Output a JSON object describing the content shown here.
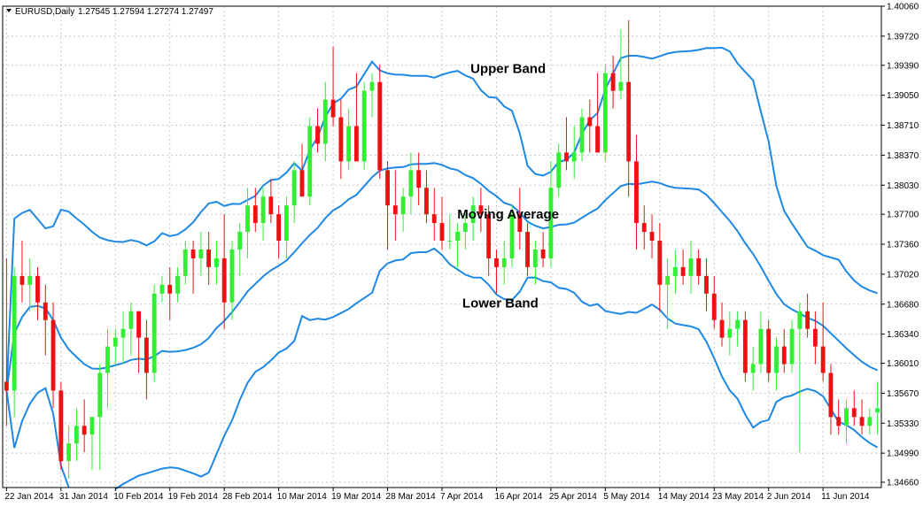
{
  "header": {
    "symbol": "EURUSD,Daily",
    "ohlc": "1.27545 1.27594 1.27274 1.27497"
  },
  "colors": {
    "bull": "#33ee33",
    "bear": "#ee1111",
    "band": "#1e88e5",
    "grid": "#c8c8c8",
    "axis": "#000000"
  },
  "chart_data": {
    "type": "candlestick",
    "grid": true,
    "ylim": [
      1.346,
      1.4006
    ],
    "y_ticks": [
      "1.40060",
      "1.39720",
      "1.39390",
      "1.39050",
      "1.38710",
      "1.38370",
      "1.38030",
      "1.37700",
      "1.37360",
      "1.37020",
      "1.36680",
      "1.36340",
      "1.36010",
      "1.35670",
      "1.35330",
      "1.34990",
      "1.34660"
    ],
    "x_ticks": [
      {
        "label": "22 Jan 2014",
        "index": 0
      },
      {
        "label": "31 Jan 2014",
        "index": 7
      },
      {
        "label": "10 Feb 2014",
        "index": 14
      },
      {
        "label": "19 Feb 2014",
        "index": 21
      },
      {
        "label": "28 Feb 2014",
        "index": 28
      },
      {
        "label": "10 Mar 2014",
        "index": 35
      },
      {
        "label": "19 Mar 2014",
        "index": 42
      },
      {
        "label": "28 Mar 2014",
        "index": 49
      },
      {
        "label": "7 Apr 2014",
        "index": 56
      },
      {
        "label": "16 Apr 2014",
        "index": 63
      },
      {
        "label": "25 Apr 2014",
        "index": 70
      },
      {
        "label": "5 May 2014",
        "index": 77
      },
      {
        "label": "14 May 2014",
        "index": 84
      },
      {
        "label": "23 May 2014",
        "index": 91
      },
      {
        "label": "2 Jun 2014",
        "index": 98
      },
      {
        "label": "11 Jun 2014",
        "index": 105
      }
    ],
    "annotations": [
      {
        "text": "Upper Band",
        "index": 64.5,
        "price": 1.393
      },
      {
        "text": "Moving Average",
        "index": 64.5,
        "price": 1.3765
      },
      {
        "text": "Lower Band",
        "index": 63.5,
        "price": 1.3664
      }
    ],
    "candles": [
      {
        "o": 1.358,
        "h": 1.372,
        "l": 1.353,
        "c": 1.357
      },
      {
        "o": 1.357,
        "h": 1.371,
        "l": 1.354,
        "c": 1.37
      },
      {
        "o": 1.37,
        "h": 1.374,
        "l": 1.367,
        "c": 1.369
      },
      {
        "o": 1.369,
        "h": 1.372,
        "l": 1.366,
        "c": 1.37
      },
      {
        "o": 1.37,
        "h": 1.371,
        "l": 1.365,
        "c": 1.367
      },
      {
        "o": 1.367,
        "h": 1.369,
        "l": 1.361,
        "c": 1.365
      },
      {
        "o": 1.365,
        "h": 1.367,
        "l": 1.355,
        "c": 1.357
      },
      {
        "o": 1.357,
        "h": 1.358,
        "l": 1.348,
        "c": 1.349
      },
      {
        "o": 1.349,
        "h": 1.353,
        "l": 1.347,
        "c": 1.351
      },
      {
        "o": 1.351,
        "h": 1.355,
        "l": 1.349,
        "c": 1.353
      },
      {
        "o": 1.353,
        "h": 1.356,
        "l": 1.35,
        "c": 1.352
      },
      {
        "o": 1.352,
        "h": 1.354,
        "l": 1.348,
        "c": 1.354
      },
      {
        "o": 1.354,
        "h": 1.36,
        "l": 1.348,
        "c": 1.359
      },
      {
        "o": 1.359,
        "h": 1.364,
        "l": 1.355,
        "c": 1.362
      },
      {
        "o": 1.362,
        "h": 1.364,
        "l": 1.36,
        "c": 1.363
      },
      {
        "o": 1.363,
        "h": 1.366,
        "l": 1.36,
        "c": 1.364
      },
      {
        "o": 1.364,
        "h": 1.367,
        "l": 1.361,
        "c": 1.366
      },
      {
        "o": 1.366,
        "h": 1.366,
        "l": 1.359,
        "c": 1.363
      },
      {
        "o": 1.363,
        "h": 1.365,
        "l": 1.356,
        "c": 1.359
      },
      {
        "o": 1.359,
        "h": 1.369,
        "l": 1.358,
        "c": 1.368
      },
      {
        "o": 1.368,
        "h": 1.37,
        "l": 1.367,
        "c": 1.369
      },
      {
        "o": 1.369,
        "h": 1.371,
        "l": 1.365,
        "c": 1.368
      },
      {
        "o": 1.368,
        "h": 1.371,
        "l": 1.367,
        "c": 1.37
      },
      {
        "o": 1.37,
        "h": 1.374,
        "l": 1.369,
        "c": 1.373
      },
      {
        "o": 1.373,
        "h": 1.374,
        "l": 1.368,
        "c": 1.372
      },
      {
        "o": 1.372,
        "h": 1.375,
        "l": 1.37,
        "c": 1.373
      },
      {
        "o": 1.373,
        "h": 1.375,
        "l": 1.369,
        "c": 1.371
      },
      {
        "o": 1.371,
        "h": 1.374,
        "l": 1.369,
        "c": 1.372
      },
      {
        "o": 1.372,
        "h": 1.377,
        "l": 1.364,
        "c": 1.367
      },
      {
        "o": 1.367,
        "h": 1.374,
        "l": 1.365,
        "c": 1.373
      },
      {
        "o": 1.373,
        "h": 1.376,
        "l": 1.37,
        "c": 1.375
      },
      {
        "o": 1.375,
        "h": 1.38,
        "l": 1.372,
        "c": 1.378
      },
      {
        "o": 1.378,
        "h": 1.38,
        "l": 1.375,
        "c": 1.376
      },
      {
        "o": 1.376,
        "h": 1.38,
        "l": 1.374,
        "c": 1.379
      },
      {
        "o": 1.379,
        "h": 1.381,
        "l": 1.376,
        "c": 1.377
      },
      {
        "o": 1.377,
        "h": 1.378,
        "l": 1.372,
        "c": 1.374
      },
      {
        "o": 1.374,
        "h": 1.379,
        "l": 1.372,
        "c": 1.378
      },
      {
        "o": 1.378,
        "h": 1.383,
        "l": 1.376,
        "c": 1.382
      },
      {
        "o": 1.382,
        "h": 1.385,
        "l": 1.379,
        "c": 1.379
      },
      {
        "o": 1.379,
        "h": 1.388,
        "l": 1.378,
        "c": 1.387
      },
      {
        "o": 1.387,
        "h": 1.389,
        "l": 1.384,
        "c": 1.385
      },
      {
        "o": 1.385,
        "h": 1.392,
        "l": 1.383,
        "c": 1.39
      },
      {
        "o": 1.39,
        "h": 1.396,
        "l": 1.387,
        "c": 1.388
      },
      {
        "o": 1.388,
        "h": 1.39,
        "l": 1.381,
        "c": 1.383
      },
      {
        "o": 1.383,
        "h": 1.389,
        "l": 1.382,
        "c": 1.387
      },
      {
        "o": 1.387,
        "h": 1.393,
        "l": 1.383,
        "c": 1.383
      },
      {
        "o": 1.383,
        "h": 1.392,
        "l": 1.382,
        "c": 1.391
      },
      {
        "o": 1.391,
        "h": 1.393,
        "l": 1.388,
        "c": 1.392
      },
      {
        "o": 1.392,
        "h": 1.394,
        "l": 1.381,
        "c": 1.382
      },
      {
        "o": 1.382,
        "h": 1.383,
        "l": 1.373,
        "c": 1.378
      },
      {
        "o": 1.378,
        "h": 1.382,
        "l": 1.374,
        "c": 1.377
      },
      {
        "o": 1.377,
        "h": 1.38,
        "l": 1.375,
        "c": 1.379
      },
      {
        "o": 1.379,
        "h": 1.384,
        "l": 1.377,
        "c": 1.382
      },
      {
        "o": 1.382,
        "h": 1.384,
        "l": 1.378,
        "c": 1.38
      },
      {
        "o": 1.38,
        "h": 1.382,
        "l": 1.376,
        "c": 1.377
      },
      {
        "o": 1.377,
        "h": 1.38,
        "l": 1.374,
        "c": 1.376
      },
      {
        "o": 1.376,
        "h": 1.379,
        "l": 1.373,
        "c": 1.374
      },
      {
        "o": 1.374,
        "h": 1.377,
        "l": 1.373,
        "c": 1.374
      },
      {
        "o": 1.374,
        "h": 1.376,
        "l": 1.371,
        "c": 1.375
      },
      {
        "o": 1.375,
        "h": 1.377,
        "l": 1.373,
        "c": 1.376
      },
      {
        "o": 1.376,
        "h": 1.379,
        "l": 1.374,
        "c": 1.378
      },
      {
        "o": 1.378,
        "h": 1.38,
        "l": 1.375,
        "c": 1.377
      },
      {
        "o": 1.377,
        "h": 1.378,
        "l": 1.37,
        "c": 1.372
      },
      {
        "o": 1.372,
        "h": 1.373,
        "l": 1.368,
        "c": 1.371
      },
      {
        "o": 1.371,
        "h": 1.374,
        "l": 1.369,
        "c": 1.372
      },
      {
        "o": 1.372,
        "h": 1.378,
        "l": 1.371,
        "c": 1.377
      },
      {
        "o": 1.377,
        "h": 1.38,
        "l": 1.373,
        "c": 1.375
      },
      {
        "o": 1.375,
        "h": 1.376,
        "l": 1.37,
        "c": 1.371
      },
      {
        "o": 1.371,
        "h": 1.374,
        "l": 1.369,
        "c": 1.373
      },
      {
        "o": 1.373,
        "h": 1.375,
        "l": 1.371,
        "c": 1.372
      },
      {
        "o": 1.372,
        "h": 1.383,
        "l": 1.371,
        "c": 1.38
      },
      {
        "o": 1.38,
        "h": 1.385,
        "l": 1.379,
        "c": 1.384
      },
      {
        "o": 1.384,
        "h": 1.388,
        "l": 1.382,
        "c": 1.383
      },
      {
        "o": 1.383,
        "h": 1.387,
        "l": 1.381,
        "c": 1.384
      },
      {
        "o": 1.384,
        "h": 1.389,
        "l": 1.383,
        "c": 1.388
      },
      {
        "o": 1.388,
        "h": 1.39,
        "l": 1.384,
        "c": 1.387
      },
      {
        "o": 1.387,
        "h": 1.393,
        "l": 1.384,
        "c": 1.384
      },
      {
        "o": 1.384,
        "h": 1.394,
        "l": 1.383,
        "c": 1.393
      },
      {
        "o": 1.393,
        "h": 1.395,
        "l": 1.389,
        "c": 1.391
      },
      {
        "o": 1.391,
        "h": 1.398,
        "l": 1.39,
        "c": 1.392
      },
      {
        "o": 1.392,
        "h": 1.399,
        "l": 1.379,
        "c": 1.383
      },
      {
        "o": 1.383,
        "h": 1.386,
        "l": 1.373,
        "c": 1.376
      },
      {
        "o": 1.376,
        "h": 1.378,
        "l": 1.373,
        "c": 1.375
      },
      {
        "o": 1.375,
        "h": 1.377,
        "l": 1.372,
        "c": 1.374
      },
      {
        "o": 1.374,
        "h": 1.376,
        "l": 1.366,
        "c": 1.369
      },
      {
        "o": 1.369,
        "h": 1.372,
        "l": 1.364,
        "c": 1.37
      },
      {
        "o": 1.37,
        "h": 1.373,
        "l": 1.368,
        "c": 1.371
      },
      {
        "o": 1.371,
        "h": 1.373,
        "l": 1.369,
        "c": 1.37
      },
      {
        "o": 1.37,
        "h": 1.374,
        "l": 1.368,
        "c": 1.372
      },
      {
        "o": 1.372,
        "h": 1.373,
        "l": 1.369,
        "c": 1.37
      },
      {
        "o": 1.37,
        "h": 1.372,
        "l": 1.366,
        "c": 1.368
      },
      {
        "o": 1.368,
        "h": 1.37,
        "l": 1.364,
        "c": 1.365
      },
      {
        "o": 1.365,
        "h": 1.367,
        "l": 1.362,
        "c": 1.363
      },
      {
        "o": 1.363,
        "h": 1.366,
        "l": 1.361,
        "c": 1.364
      },
      {
        "o": 1.364,
        "h": 1.366,
        "l": 1.362,
        "c": 1.365
      },
      {
        "o": 1.365,
        "h": 1.366,
        "l": 1.358,
        "c": 1.359
      },
      {
        "o": 1.359,
        "h": 1.362,
        "l": 1.357,
        "c": 1.36
      },
      {
        "o": 1.36,
        "h": 1.366,
        "l": 1.359,
        "c": 1.364
      },
      {
        "o": 1.364,
        "h": 1.365,
        "l": 1.358,
        "c": 1.359
      },
      {
        "o": 1.359,
        "h": 1.363,
        "l": 1.357,
        "c": 1.362
      },
      {
        "o": 1.362,
        "h": 1.364,
        "l": 1.359,
        "c": 1.36
      },
      {
        "o": 1.36,
        "h": 1.365,
        "l": 1.359,
        "c": 1.364
      },
      {
        "o": 1.364,
        "h": 1.367,
        "l": 1.35,
        "c": 1.366
      },
      {
        "o": 1.366,
        "h": 1.368,
        "l": 1.363,
        "c": 1.364
      },
      {
        "o": 1.364,
        "h": 1.366,
        "l": 1.36,
        "c": 1.362
      },
      {
        "o": 1.362,
        "h": 1.367,
        "l": 1.358,
        "c": 1.359
      },
      {
        "o": 1.359,
        "h": 1.36,
        "l": 1.352,
        "c": 1.354
      },
      {
        "o": 1.354,
        "h": 1.356,
        "l": 1.352,
        "c": 1.353
      },
      {
        "o": 1.353,
        "h": 1.356,
        "l": 1.351,
        "c": 1.355
      },
      {
        "o": 1.355,
        "h": 1.357,
        "l": 1.353,
        "c": 1.354
      },
      {
        "o": 1.354,
        "h": 1.356,
        "l": 1.352,
        "c": 1.353
      },
      {
        "o": 1.353,
        "h": 1.355,
        "l": 1.352,
        "c": 1.354
      },
      {
        "o": 1.3545,
        "h": 1.358,
        "l": 1.352,
        "c": 1.355
      }
    ]
  }
}
